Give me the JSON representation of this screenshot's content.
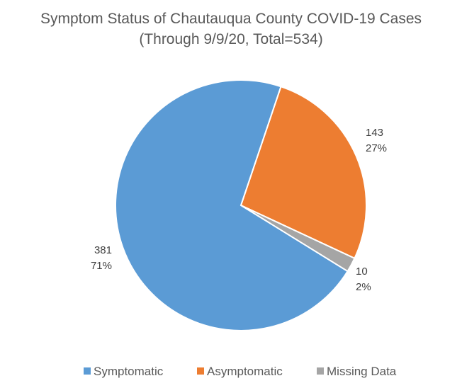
{
  "chart_data": {
    "type": "pie",
    "title": "Symptom Status of Chautauqua County COVID-19 Cases",
    "subtitle": "(Through 9/9/20, Total=534)",
    "categories": [
      "Symptomatic",
      "Asymptomatic",
      "Missing Data"
    ],
    "values": [
      381,
      143,
      10
    ],
    "percent_labels": [
      "71%",
      "27%",
      "2%"
    ],
    "colors": [
      "#5B9BD5",
      "#ED7D31",
      "#A5A5A5"
    ],
    "start_angle_deg": 18.6,
    "legend_position": "bottom"
  }
}
